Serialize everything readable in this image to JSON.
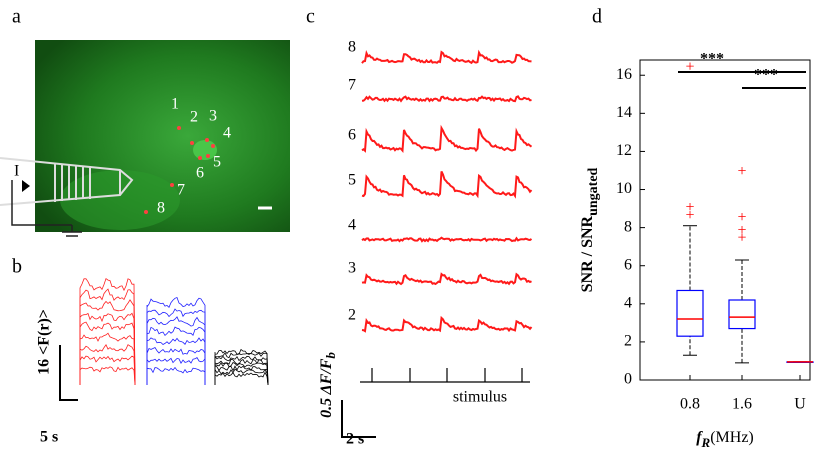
{
  "panels": {
    "a": {
      "label": "a",
      "roi_labels": [
        "1",
        "2",
        "3",
        "4",
        "5",
        "6",
        "7",
        "8"
      ],
      "current_label": "I"
    },
    "b": {
      "label": "b",
      "y_scale": "16 <F(r)>",
      "x_scale": "5 s"
    },
    "c": {
      "label": "c",
      "trace_labels": [
        "8",
        "7",
        "6",
        "5",
        "4",
        "3",
        "2"
      ],
      "y_scale": "0.5 ΔF/F",
      "y_scale_sub": "b",
      "x_scale": "2 s",
      "stimulus_label": "stimulus"
    }
  },
  "chart_data": {
    "type": "box",
    "label": "d",
    "categories": [
      "0.8",
      "1.6",
      "U"
    ],
    "whisker_low": [
      1.3,
      0.9,
      0.95
    ],
    "q1": [
      2.3,
      2.7,
      0.95
    ],
    "median": [
      3.2,
      3.3,
      0.95
    ],
    "q3": [
      4.7,
      4.2,
      0.95
    ],
    "whisker_high": [
      8.1,
      6.3,
      0.95
    ],
    "outliers": [
      [
        8.6,
        9.0,
        16.4
      ],
      [
        7.4,
        7.8,
        8.5,
        10.9
      ],
      []
    ],
    "box_color": "#0000ff",
    "median_color": "#ff0000",
    "outlier_color": "#ff0000",
    "ylim": [
      0,
      16.8
    ],
    "yticks": [
      0,
      2,
      4,
      6,
      8,
      10,
      12,
      14,
      16
    ],
    "y_label": "SNR / SNR",
    "y_label_sub": "ungated",
    "x_label": "f",
    "x_label_sub": "R",
    "x_label_unit": "(MHz)",
    "annotations": [
      "***",
      "***"
    ]
  }
}
